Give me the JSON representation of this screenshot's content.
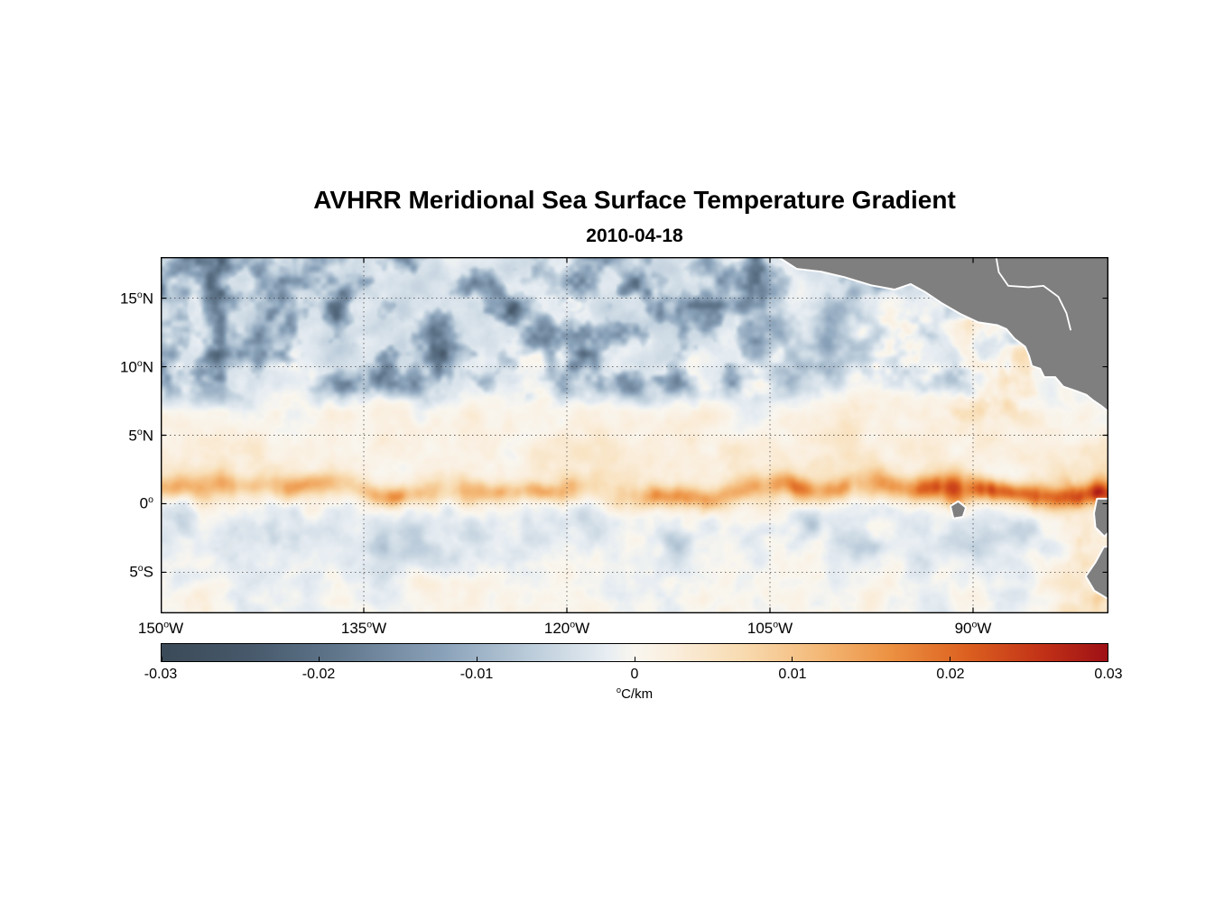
{
  "figure": {
    "title": "AVHRR Meridional Sea Surface Temperature Gradient",
    "subtitle": "2010-04-18"
  },
  "map": {
    "x_ticks": [
      {
        "pre": "150",
        "sup": "o",
        "post": "W",
        "lon": 150
      },
      {
        "pre": "135",
        "sup": "o",
        "post": "W",
        "lon": 135
      },
      {
        "pre": "120",
        "sup": "o",
        "post": "W",
        "lon": 120
      },
      {
        "pre": "105",
        "sup": "o",
        "post": "W",
        "lon": 105
      },
      {
        "pre": "90",
        "sup": "o",
        "post": "W",
        "lon": 90
      }
    ],
    "y_ticks": [
      {
        "pre": "15",
        "sup": "o",
        "post": "N",
        "lat": 15
      },
      {
        "pre": "10",
        "sup": "o",
        "post": "N",
        "lat": 10
      },
      {
        "pre": "5",
        "sup": "o",
        "post": "N",
        "lat": 5
      },
      {
        "pre": "0",
        "sup": "o",
        "post": "",
        "lat": 0
      },
      {
        "pre": "5",
        "sup": "o",
        "post": "S",
        "lat": -5
      }
    ]
  },
  "colorbar": {
    "tick_labels": [
      "-0.03",
      "-0.02",
      "-0.01",
      "0",
      "0.01",
      "0.02",
      "0.03"
    ],
    "unit_display": {
      "sup": "o",
      "post": "C/km"
    }
  },
  "chart_data": {
    "type": "heatmap",
    "title": "AVHRR Meridional Sea Surface Temperature Gradient",
    "date": "2010-04-18",
    "variable": "Meridional sea surface temperature gradient",
    "units": "°C/km",
    "x_axis": {
      "range_west": 150,
      "range_east": 80,
      "tick_lons_west": [
        150,
        135,
        120,
        105,
        90
      ],
      "grid_lons_west": [
        135,
        120,
        105,
        90
      ]
    },
    "y_axis": {
      "range_north": 18,
      "range_south": -8,
      "tick_lats": [
        15,
        10,
        5,
        0,
        -5
      ],
      "grid_lats": [
        15,
        10,
        5,
        0,
        -5
      ]
    },
    "colorbar": {
      "min": -0.03,
      "max": 0.03,
      "ticks": [
        -0.03,
        -0.02,
        -0.01,
        0,
        0.01,
        0.02,
        0.03
      ],
      "unit": "°C/km",
      "stops": [
        {
          "t": 0.0,
          "color": "#3b4a57"
        },
        {
          "t": 0.09,
          "color": "#46586a"
        },
        {
          "t": 0.18,
          "color": "#5e7489"
        },
        {
          "t": 0.3,
          "color": "#8ba3ba"
        },
        {
          "t": 0.4,
          "color": "#c0d0dd"
        },
        {
          "t": 0.47,
          "color": "#e7edf2"
        },
        {
          "t": 0.5,
          "color": "#f9f6ef"
        },
        {
          "t": 0.54,
          "color": "#faeedd"
        },
        {
          "t": 0.61,
          "color": "#f8dcb3"
        },
        {
          "t": 0.69,
          "color": "#f4bb7b"
        },
        {
          "t": 0.77,
          "color": "#ec9142"
        },
        {
          "t": 0.85,
          "color": "#dc6120"
        },
        {
          "t": 0.93,
          "color": "#c23217"
        },
        {
          "t": 1.0,
          "color": "#9e1015"
        }
      ]
    },
    "features": {
      "background_noise_amplitude": 0.006,
      "equatorial_front": {
        "lat_center": 0.9,
        "half_width_deg": 0.8,
        "amplitude_base": 0.013,
        "amplitude_east_boost": 0.01,
        "meander_amplitude_deg": 1.1
      },
      "northern_cool_region": {
        "lat_min": 6.5,
        "lat_max": 18,
        "amplitude": -0.02
      },
      "south_band": {
        "lat_center": -2.0,
        "amplitude": -0.006
      },
      "coastal_warm_amplitude": 0.011
    },
    "notable_features": [
      "Strong warm (red/orange) band of positive gradient along ~0-2°N across the basin, most intense east of 105°W toward the coast",
      "Patchy negative (blue) gradients between ~7°N and 17°N, mainly west of 105°W",
      "Weak mottled gradients elsewhere with pale warm background near the equator",
      "Gray land / no-data mask: Mexico and Central America (upper right), Galápagos Islands near 91°W 0.5°S, Ecuador and Peru coast (lower right)"
    ],
    "land": {
      "color": "#7f7f7f",
      "outline_color": "#ffffff",
      "polygons": [
        {
          "name": "central-america",
          "points": [
            [
              105.2,
              18.6
            ],
            [
              103.0,
              17.2
            ],
            [
              101.2,
              17.0
            ],
            [
              99.5,
              16.6
            ],
            [
              97.5,
              16.0
            ],
            [
              95.8,
              15.7
            ],
            [
              94.6,
              16.1
            ],
            [
              93.5,
              15.5
            ],
            [
              92.3,
              14.7
            ],
            [
              90.9,
              13.9
            ],
            [
              89.6,
              13.3
            ],
            [
              88.2,
              13.1
            ],
            [
              87.5,
              12.8
            ],
            [
              86.9,
              12.1
            ],
            [
              86.1,
              11.5
            ],
            [
              85.8,
              10.8
            ],
            [
              85.6,
              10.1
            ],
            [
              85.0,
              9.9
            ],
            [
              84.7,
              9.3
            ],
            [
              83.9,
              9.3
            ],
            [
              83.3,
              8.6
            ],
            [
              82.4,
              8.3
            ],
            [
              81.6,
              8.0
            ],
            [
              81.1,
              7.6
            ],
            [
              80.5,
              7.2
            ],
            [
              80.0,
              6.8
            ],
            [
              79.3,
              6.3
            ],
            [
              78.6,
              7.2
            ],
            [
              78.2,
              8.5
            ],
            [
              78.0,
              18.6
            ]
          ]
        },
        {
          "name": "ecuador-coast",
          "points": [
            [
              80.8,
              0.3
            ],
            [
              81.0,
              -0.7
            ],
            [
              80.9,
              -1.7
            ],
            [
              80.3,
              -2.3
            ],
            [
              79.6,
              -1.6
            ],
            [
              79.7,
              0.3
            ]
          ]
        },
        {
          "name": "peru-coast",
          "points": [
            [
              80.3,
              -3.2
            ],
            [
              80.9,
              -4.3
            ],
            [
              81.6,
              -5.3
            ],
            [
              81.0,
              -6.3
            ],
            [
              80.0,
              -6.9
            ],
            [
              79.2,
              -7.7
            ],
            [
              78.7,
              -8.7
            ],
            [
              74.0,
              -8.7
            ],
            [
              74.0,
              -3.2
            ]
          ]
        },
        {
          "name": "galapagos-islands",
          "points": [
            [
              91.6,
              -0.2
            ],
            [
              91.1,
              0.1
            ],
            [
              90.6,
              -0.3
            ],
            [
              90.8,
              -0.9
            ],
            [
              91.4,
              -1.0
            ]
          ]
        }
      ],
      "coastline_detail": [
        [
          88.4,
          18.6
        ],
        [
          88.1,
          16.9
        ],
        [
          87.4,
          15.9
        ],
        [
          85.9,
          15.8
        ],
        [
          84.8,
          15.9
        ],
        [
          83.7,
          15.1
        ],
        [
          83.1,
          13.9
        ],
        [
          82.8,
          12.7
        ]
      ]
    }
  }
}
